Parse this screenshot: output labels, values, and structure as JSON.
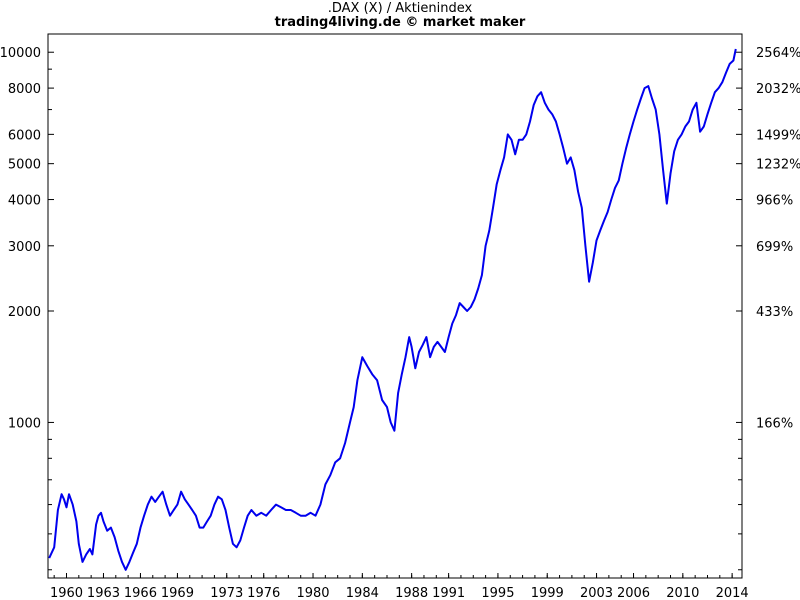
{
  "chart_data": {
    "type": "line",
    "title": ".DAX (X) / Aktienindex",
    "subtitle": "trading4living.de © market maker",
    "y_scale": "log",
    "ylim": [
      380,
      11200
    ],
    "xlim": [
      1958.5,
      2014.8
    ],
    "y_left_ticks": [
      {
        "value": 1000,
        "label": "1000"
      },
      {
        "value": 2000,
        "label": "2000"
      },
      {
        "value": 3000,
        "label": "3000"
      },
      {
        "value": 4000,
        "label": "4000"
      },
      {
        "value": 5000,
        "label": "5000"
      },
      {
        "value": 6000,
        "label": "6000"
      },
      {
        "value": 8000,
        "label": "8000"
      },
      {
        "value": 10000,
        "label": "10000"
      }
    ],
    "y_right_ticks": [
      {
        "value": 1000,
        "label": "166%"
      },
      {
        "value": 2000,
        "label": "433%"
      },
      {
        "value": 3000,
        "label": "699%"
      },
      {
        "value": 4000,
        "label": "966%"
      },
      {
        "value": 5000,
        "label": "1232%"
      },
      {
        "value": 6000,
        "label": "1499%"
      },
      {
        "value": 8000,
        "label": "2032%"
      },
      {
        "value": 10000,
        "label": "2564%"
      }
    ],
    "y_minor_ticks": [
      400,
      500,
      600,
      700,
      800,
      900,
      7000,
      9000
    ],
    "x_ticks": [
      {
        "value": 1960,
        "label": "1960"
      },
      {
        "value": 1963,
        "label": "1963"
      },
      {
        "value": 1966,
        "label": "1966"
      },
      {
        "value": 1969,
        "label": "1969"
      },
      {
        "value": 1973,
        "label": "1973"
      },
      {
        "value": 1976,
        "label": "1976"
      },
      {
        "value": 1980,
        "label": "1980"
      },
      {
        "value": 1984,
        "label": "1984"
      },
      {
        "value": 1988,
        "label": "1988"
      },
      {
        "value": 1991,
        "label": "1991"
      },
      {
        "value": 1995,
        "label": "1995"
      },
      {
        "value": 1999,
        "label": "1999"
      },
      {
        "value": 2003,
        "label": "2003"
      },
      {
        "value": 2006,
        "label": "2006"
      },
      {
        "value": 2010,
        "label": "2010"
      },
      {
        "value": 2014,
        "label": "2014"
      }
    ],
    "line_color": "#0000ee",
    "series": [
      {
        "x": [
          1958.6,
          1959.0,
          1959.3,
          1959.6,
          1959.8,
          1960.0,
          1960.2,
          1960.5,
          1960.8,
          1961.0,
          1961.3,
          1961.6,
          1961.9,
          1962.1,
          1962.4,
          1962.6,
          1962.8,
          1963.0,
          1963.3,
          1963.6,
          1963.9,
          1964.2,
          1964.5,
          1964.8,
          1965.1,
          1965.4,
          1965.7,
          1966.0,
          1966.3,
          1966.6,
          1966.9,
          1967.2,
          1967.5,
          1967.8,
          1968.1,
          1968.4,
          1968.7,
          1969.0,
          1969.3,
          1969.6,
          1969.9,
          1970.2,
          1970.5,
          1970.8,
          1971.1,
          1971.4,
          1971.7,
          1972.0,
          1972.3,
          1972.6,
          1972.9,
          1973.2,
          1973.5,
          1973.8,
          1974.1,
          1974.4,
          1974.7,
          1975.0,
          1975.4,
          1975.8,
          1976.2,
          1976.6,
          1977.0,
          1977.4,
          1977.8,
          1978.2,
          1978.6,
          1979.0,
          1979.4,
          1979.8,
          1980.2,
          1980.6,
          1981.0,
          1981.4,
          1981.8,
          1982.2,
          1982.6,
          1983.0,
          1983.3,
          1983.6,
          1984.0,
          1984.4,
          1984.8,
          1985.2,
          1985.6,
          1986.0,
          1986.3,
          1986.6,
          1986.9,
          1987.2,
          1987.5,
          1987.8,
          1988.0,
          1988.3,
          1988.6,
          1988.9,
          1989.2,
          1989.5,
          1989.8,
          1990.1,
          1990.4,
          1990.7,
          1991.0,
          1991.3,
          1991.6,
          1991.9,
          1992.2,
          1992.5,
          1992.8,
          1993.1,
          1993.4,
          1993.7,
          1994.0,
          1994.3,
          1994.6,
          1994.9,
          1995.2,
          1995.5,
          1995.8,
          1996.1,
          1996.4,
          1996.7,
          1997.0,
          1997.3,
          1997.6,
          1997.9,
          1998.2,
          1998.5,
          1998.8,
          1999.1,
          1999.4,
          1999.7,
          2000.0,
          2000.3,
          2000.6,
          2000.9,
          2001.2,
          2001.5,
          2001.8,
          2002.1,
          2002.4,
          2002.7,
          2003.0,
          2003.3,
          2003.6,
          2003.9,
          2004.2,
          2004.5,
          2004.8,
          2005.1,
          2005.4,
          2005.7,
          2006.0,
          2006.3,
          2006.6,
          2006.9,
          2007.2,
          2007.5,
          2007.8,
          2008.1,
          2008.4,
          2008.7,
          2009.0,
          2009.3,
          2009.6,
          2009.9,
          2010.2,
          2010.5,
          2010.8,
          2011.1,
          2011.4,
          2011.7,
          2012.0,
          2012.3,
          2012.6,
          2012.9,
          2013.2,
          2013.5,
          2013.8,
          2014.1,
          2014.3
        ],
        "y": [
          430,
          460,
          580,
          640,
          620,
          590,
          640,
          600,
          540,
          470,
          420,
          440,
          455,
          440,
          530,
          560,
          570,
          540,
          510,
          520,
          490,
          450,
          420,
          400,
          420,
          445,
          470,
          520,
          560,
          600,
          630,
          610,
          630,
          650,
          600,
          560,
          580,
          600,
          650,
          620,
          600,
          580,
          560,
          520,
          520,
          540,
          560,
          600,
          630,
          620,
          580,
          520,
          470,
          460,
          480,
          520,
          560,
          580,
          560,
          570,
          560,
          580,
          600,
          590,
          580,
          580,
          570,
          560,
          560,
          570,
          560,
          600,
          680,
          720,
          780,
          800,
          880,
          1000,
          1100,
          1300,
          1500,
          1420,
          1350,
          1300,
          1150,
          1100,
          1000,
          950,
          1200,
          1350,
          1500,
          1700,
          1600,
          1400,
          1550,
          1620,
          1700,
          1500,
          1600,
          1650,
          1600,
          1550,
          1700,
          1850,
          1950,
          2100,
          2050,
          2000,
          2050,
          2150,
          2300,
          2500,
          3000,
          3300,
          3800,
          4400,
          4800,
          5200,
          6000,
          5800,
          5300,
          5800,
          5800,
          6000,
          6500,
          7200,
          7600,
          7800,
          7300,
          7000,
          6800,
          6500,
          6000,
          5500,
          5000,
          5200,
          4800,
          4200,
          3800,
          3000,
          2400,
          2700,
          3100,
          3300,
          3500,
          3700,
          4000,
          4300,
          4500,
          5000,
          5500,
          6000,
          6500,
          7000,
          7500,
          8000,
          8100,
          7500,
          7000,
          6000,
          4800,
          3900,
          4700,
          5400,
          5800,
          6000,
          6300,
          6500,
          7000,
          7300,
          6100,
          6300,
          6800,
          7300,
          7800,
          8000,
          8300,
          8800,
          9300,
          9500,
          10200
        ]
      }
    ]
  }
}
